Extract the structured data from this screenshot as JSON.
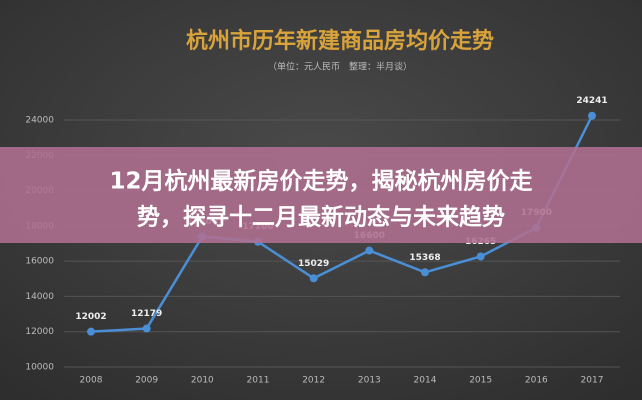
{
  "chart_data": {
    "type": "line",
    "title": "杭州市历年新建商品房均价走势",
    "subtitle": "（单位：元人民币　整理：半月谈）",
    "categories": [
      "2008",
      "2009",
      "2010",
      "2011",
      "2012",
      "2013",
      "2014",
      "2015",
      "2016",
      "2017"
    ],
    "series": [
      {
        "color": "#4a8fd6",
        "values": [
          12002,
          12179,
          17400,
          17100,
          15029,
          16600,
          15368,
          16265,
          17900,
          24241
        ]
      }
    ],
    "ylim": [
      10000,
      24000
    ],
    "yticks": [
      10000,
      12000,
      14000,
      16000,
      18000,
      20000,
      22000,
      24000
    ],
    "grid": true
  },
  "overlay": {
    "headline": [
      "12月杭州最新房价走势，揭秘杭州房价走",
      "势，探寻十二月最新动态与未来趋势"
    ]
  }
}
